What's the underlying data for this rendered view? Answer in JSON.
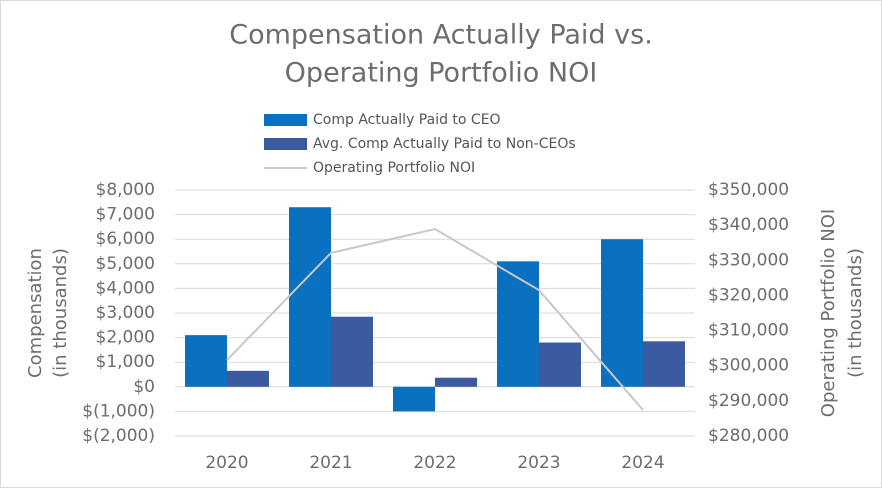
{
  "chart_data": {
    "type": "bar",
    "title": [
      "Compensation Actually Paid vs.",
      "Operating Portfolio NOI"
    ],
    "categories": [
      "2020",
      "2021",
      "2022",
      "2023",
      "2024"
    ],
    "series": [
      {
        "name": "Comp Actually Paid to CEO",
        "color": "#0a70c0",
        "values": [
          2100,
          7300,
          -1000,
          5100,
          6000
        ]
      },
      {
        "name": "Avg. Comp Actually Paid to Non-CEOs",
        "color": "#3b5aa0",
        "values": [
          650,
          2850,
          370,
          1800,
          1850
        ]
      },
      {
        "name": "Operating Portfolio NOI",
        "color": "#c8c8c8",
        "type": "line",
        "axis": "y2",
        "values": [
          301600,
          332100,
          338900,
          321500,
          287400
        ]
      }
    ],
    "ylabel": [
      "Compensation",
      "(in thousands)"
    ],
    "y2label": [
      "Operating Portfolio NOI",
      "(in thousands)"
    ],
    "ylim": [
      -2000,
      8000
    ],
    "yticks": [
      {
        "value": -2000,
        "label": "$(2,000)"
      },
      {
        "value": -1000,
        "label": "$(1,000)"
      },
      {
        "value": 0,
        "label": "$0"
      },
      {
        "value": 1000,
        "label": "$1,000"
      },
      {
        "value": 2000,
        "label": "$2,000"
      },
      {
        "value": 3000,
        "label": "$3,000"
      },
      {
        "value": 4000,
        "label": "$4,000"
      },
      {
        "value": 5000,
        "label": "$5,000"
      },
      {
        "value": 6000,
        "label": "$6,000"
      },
      {
        "value": 7000,
        "label": "$7,000"
      },
      {
        "value": 8000,
        "label": "$8,000"
      }
    ],
    "y2lim": [
      280000,
      350000
    ],
    "y2ticks": [
      {
        "value": 280000,
        "label": "$280,000"
      },
      {
        "value": 290000,
        "label": "$290,000"
      },
      {
        "value": 300000,
        "label": "$300,000"
      },
      {
        "value": 310000,
        "label": "$310,000"
      },
      {
        "value": 320000,
        "label": "$320,000"
      },
      {
        "value": 330000,
        "label": "$330,000"
      },
      {
        "value": 340000,
        "label": "$340,000"
      },
      {
        "value": 350000,
        "label": "$350,000"
      }
    ],
    "grid": true,
    "legend": "top"
  }
}
